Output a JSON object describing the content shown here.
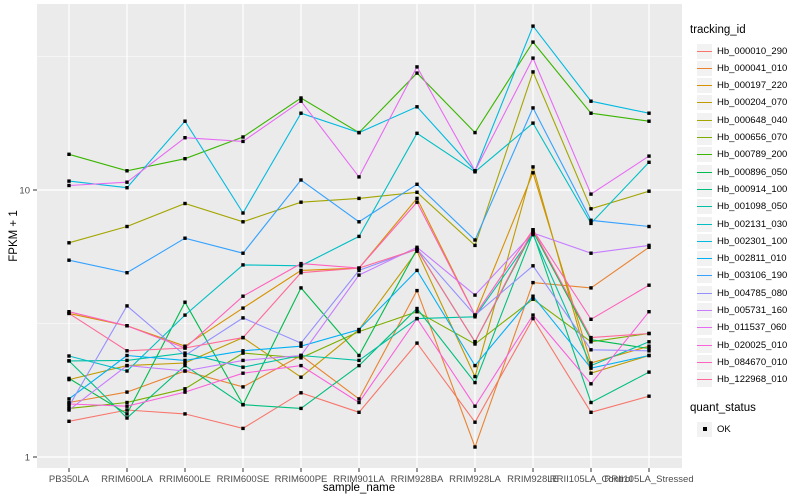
{
  "chart_data": {
    "type": "line",
    "xlabel": "sample_name",
    "ylabel": "FPKM + 1",
    "yscale": "log10",
    "ylim": [
      0.91,
      48
    ],
    "grid": true,
    "panel_bg": "#EBEBEB",
    "grid_color": "#FFFFFF",
    "tick_label_color": "#4d4d4d",
    "point_color": "#000000",
    "yticks": [
      {
        "label": "1",
        "value": 1
      },
      {
        "label": "10",
        "value": 10
      }
    ],
    "minor_y": [
      3.1623,
      31.623
    ],
    "categories": [
      "PB350LA",
      "RRIM600LA",
      "RRIM600LE",
      "RRIM600SE",
      "RRIM600PE",
      "RRIM901LA",
      "RRIM928BA",
      "RRIM928LA",
      "RRIM928LE",
      "RRII105LA_Control",
      "RRII105LA_Stressed"
    ],
    "legend": {
      "title": "tracking_id",
      "position": "right"
    },
    "quant_legend": {
      "title": "quant_status",
      "items": [
        {
          "label": "OK",
          "marker": "black-square"
        }
      ]
    },
    "series": [
      {
        "name": "Hb_000010_290",
        "color": "#F8766D",
        "values": [
          1.36,
          1.5,
          1.45,
          1.28,
          1.74,
          1.47,
          2.67,
          1.35,
          3.3,
          1.47,
          1.69
        ]
      },
      {
        "name": "Hb_000041_010",
        "color": "#EA8331",
        "values": [
          1.6,
          1.75,
          2.1,
          1.83,
          2.4,
          1.65,
          4.2,
          1.09,
          4.5,
          4.3,
          6.1
        ]
      },
      {
        "name": "Hb_000197_220",
        "color": "#D89000",
        "values": [
          3.45,
          3.1,
          2.6,
          3.61,
          5.0,
          5.1,
          9.3,
          3.4,
          11.6,
          2.25,
          2.6
        ]
      },
      {
        "name": "Hb_000204_070",
        "color": "#C09B00",
        "values": [
          1.95,
          2.2,
          2.25,
          2.8,
          1.99,
          3.0,
          5.9,
          2.0,
          12.2,
          2.06,
          2.4
        ]
      },
      {
        "name": "Hb_000648_040",
        "color": "#A3A500",
        "values": [
          6.34,
          7.3,
          8.9,
          7.6,
          9.0,
          9.3,
          9.8,
          6.2,
          27.7,
          8.5,
          9.9
        ]
      },
      {
        "name": "Hb_000656_070",
        "color": "#7CAE00",
        "values": [
          1.52,
          1.6,
          1.8,
          2.45,
          2.35,
          2.95,
          3.5,
          2.65,
          3.9,
          2.7,
          2.9
        ]
      },
      {
        "name": "Hb_000789_200",
        "color": "#39B600",
        "values": [
          13.6,
          11.8,
          13.1,
          15.8,
          22.1,
          16.4,
          27.4,
          16.4,
          35.8,
          19.4,
          18.1
        ]
      },
      {
        "name": "Hb_000896_050",
        "color": "#00BB4E",
        "values": [
          1.97,
          1.45,
          3.8,
          1.57,
          4.3,
          2.4,
          6.0,
          2.7,
          7.0,
          2.75,
          2.55
        ]
      },
      {
        "name": "Hb_000914_100",
        "color": "#00BF7D",
        "values": [
          2.29,
          1.4,
          2.2,
          1.57,
          1.52,
          2.2,
          3.6,
          1.9,
          6.9,
          1.6,
          2.08
        ]
      },
      {
        "name": "Hb_001098_050",
        "color": "#00C1A3",
        "values": [
          2.29,
          2.3,
          2.45,
          2.17,
          2.4,
          2.3,
          3.3,
          3.35,
          6.8,
          2.2,
          2.7
        ]
      },
      {
        "name": "Hb_002131_030",
        "color": "#00BFC4",
        "values": [
          2.39,
          2.1,
          3.4,
          5.24,
          5.2,
          6.7,
          16.3,
          11.7,
          17.8,
          7.5,
          12.7
        ]
      },
      {
        "name": "Hb_002301_100",
        "color": "#00BAE0",
        "values": [
          10.8,
          10.2,
          18.1,
          8.2,
          19.4,
          16.4,
          20.5,
          11.8,
          41.1,
          21.5,
          19.4
        ]
      },
      {
        "name": "Hb_002811_010",
        "color": "#00B0F6",
        "values": [
          1.65,
          2.4,
          2.3,
          2.5,
          2.6,
          3.0,
          5.0,
          2.2,
          4.0,
          2.15,
          2.4
        ]
      },
      {
        "name": "Hb_003106_190",
        "color": "#35A2FF",
        "values": [
          5.46,
          4.9,
          6.6,
          5.8,
          10.9,
          7.6,
          10.5,
          6.5,
          20.3,
          7.7,
          7.3
        ]
      },
      {
        "name": "Hb_004785_080",
        "color": "#9590FF",
        "values": [
          1.55,
          3.68,
          2.4,
          3.32,
          2.67,
          5.0,
          6.0,
          3.4,
          5.2,
          2.52,
          2.5
        ]
      },
      {
        "name": "Hb_005731_160",
        "color": "#C77CFF",
        "values": [
          1.5,
          2.2,
          2.1,
          2.3,
          2.4,
          4.8,
          6.1,
          4.04,
          6.9,
          5.8,
          6.2
        ]
      },
      {
        "name": "Hb_011537_060",
        "color": "#E76BF3",
        "values": [
          10.4,
          10.7,
          15.7,
          15.2,
          21.5,
          11.2,
          28.9,
          11.8,
          31.2,
          9.65,
          13.4
        ]
      },
      {
        "name": "Hb_020025_010",
        "color": "#FA62DB",
        "values": [
          1.58,
          1.55,
          1.75,
          2.06,
          2.2,
          1.6,
          3.3,
          1.55,
          3.4,
          1.88,
          3.5
        ]
      },
      {
        "name": "Hb_084670_010",
        "color": "#FF62BC",
        "values": [
          3.5,
          3.1,
          2.56,
          4.0,
          5.3,
          5.1,
          9.0,
          3.4,
          7.1,
          3.28,
          4.4
        ]
      },
      {
        "name": "Hb_122968_010",
        "color": "#FF6A98",
        "values": [
          3.45,
          2.5,
          2.56,
          2.8,
          4.9,
          5.1,
          6.0,
          2.7,
          7.1,
          2.8,
          2.9
        ]
      }
    ]
  }
}
